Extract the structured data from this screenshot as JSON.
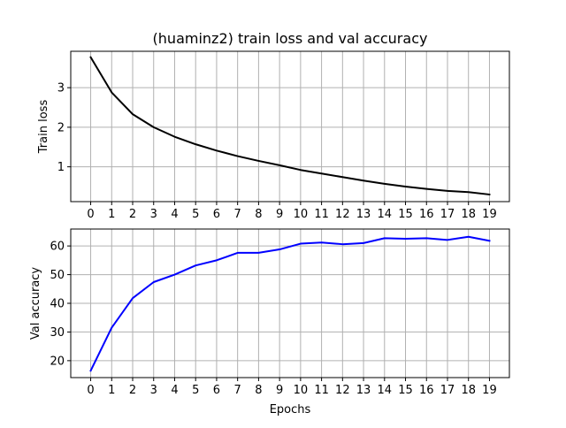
{
  "chart_data": [
    {
      "type": "line",
      "title": "(huaminz2) train loss and val accuracy",
      "xlabel": "",
      "ylabel": "Train loss",
      "x": [
        0,
        1,
        2,
        3,
        4,
        5,
        6,
        7,
        8,
        9,
        10,
        11,
        12,
        13,
        14,
        15,
        16,
        17,
        18,
        19
      ],
      "xticks": [
        "0",
        "1",
        "2",
        "3",
        "4",
        "5",
        "6",
        "7",
        "8",
        "9",
        "10",
        "11",
        "12",
        "13",
        "14",
        "15",
        "16",
        "17",
        "18",
        "19"
      ],
      "yticks": [
        "1",
        "2",
        "3"
      ],
      "ylim": [
        0.12,
        3.92
      ],
      "xlim": [
        -0.95,
        19.95
      ],
      "grid": true,
      "series": [
        {
          "color": "#000000",
          "values": [
            3.77,
            2.88,
            2.33,
            2.0,
            1.76,
            1.57,
            1.41,
            1.27,
            1.15,
            1.04,
            0.92,
            0.83,
            0.74,
            0.65,
            0.57,
            0.5,
            0.44,
            0.39,
            0.36,
            0.3
          ]
        }
      ]
    },
    {
      "type": "line",
      "title": "",
      "xlabel": "Epochs",
      "ylabel": "Val accuracy",
      "x": [
        0,
        1,
        2,
        3,
        4,
        5,
        6,
        7,
        8,
        9,
        10,
        11,
        12,
        13,
        14,
        15,
        16,
        17,
        18,
        19
      ],
      "xticks": [
        "0",
        "1",
        "2",
        "3",
        "4",
        "5",
        "6",
        "7",
        "8",
        "9",
        "10",
        "11",
        "12",
        "13",
        "14",
        "15",
        "16",
        "17",
        "18",
        "19"
      ],
      "yticks": [
        "20",
        "30",
        "40",
        "50",
        "60"
      ],
      "ylim": [
        14.1,
        65.9
      ],
      "xlim": [
        -0.95,
        19.95
      ],
      "grid": true,
      "series": [
        {
          "color": "#0000ff",
          "values": [
            16.5,
            31.5,
            41.8,
            47.4,
            50.0,
            53.2,
            55.0,
            57.6,
            57.6,
            58.8,
            60.8,
            61.2,
            60.6,
            61.0,
            62.7,
            62.5,
            62.7,
            62.1,
            63.2,
            61.8
          ]
        }
      ]
    }
  ]
}
